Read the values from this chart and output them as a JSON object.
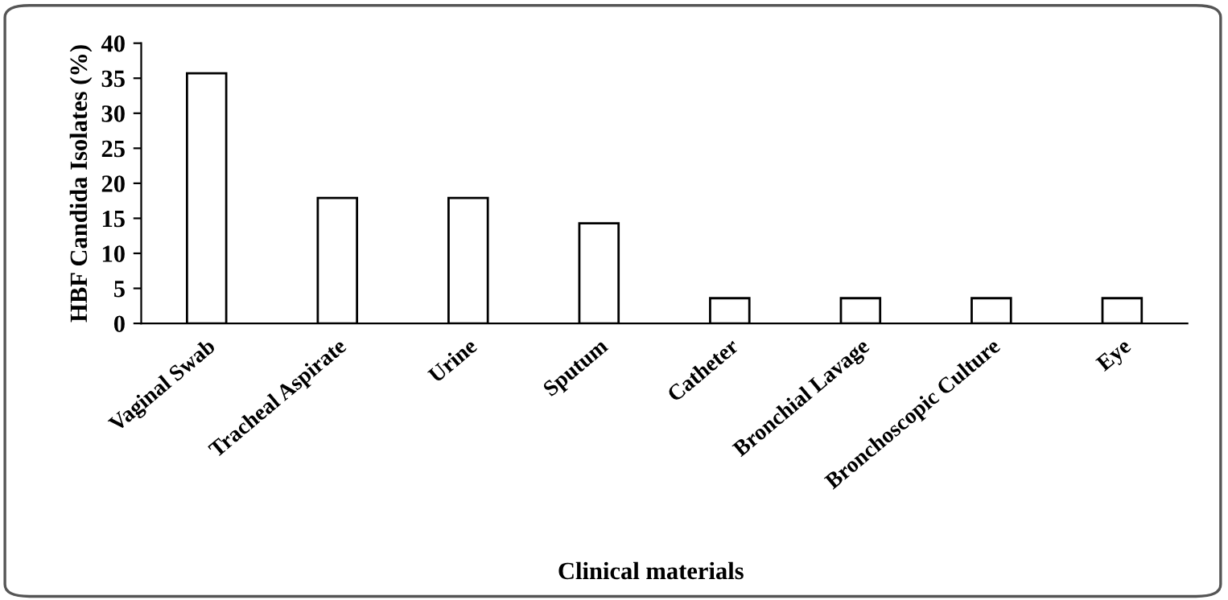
{
  "chart_data": {
    "type": "bar",
    "xlabel": "Clinical materials",
    "ylabel": "HBF Candida Isolates (%)",
    "categories": [
      "Vaginal Swab",
      "Tracheal Aspirate",
      "Urine",
      "Sputum",
      "Catheter",
      "Bronchial Lavage",
      "Bronchoscopic Culture",
      "Eye"
    ],
    "values": [
      35.7,
      17.9,
      17.9,
      14.3,
      3.6,
      3.6,
      3.6,
      3.6
    ],
    "color": "#ffffff",
    "ylim": [
      0,
      40
    ],
    "yticks": [
      0,
      5,
      10,
      15,
      20,
      25,
      30,
      35,
      40
    ],
    "grid": false,
    "legend": false
  }
}
